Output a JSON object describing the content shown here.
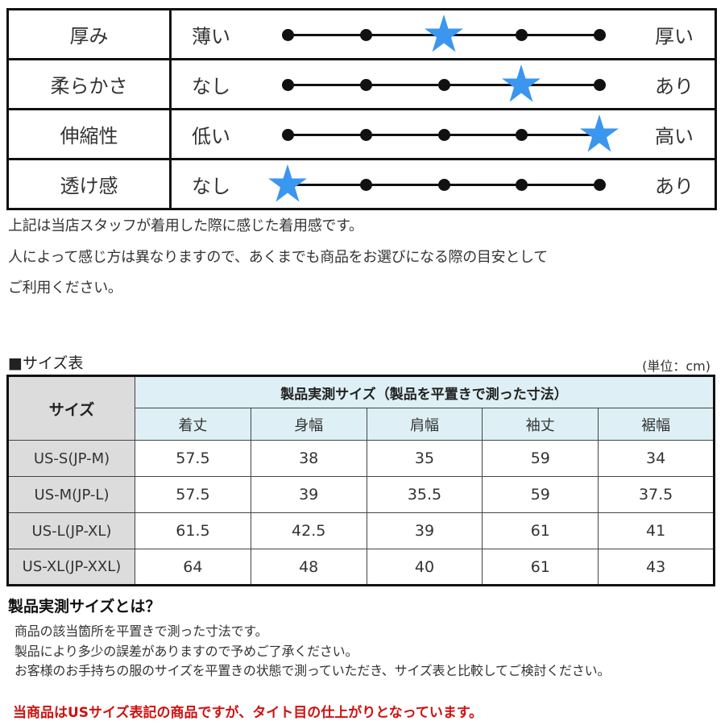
{
  "feel_chart": {
    "levels": 5,
    "star_color": "#3a96ef",
    "rows": [
      {
        "label": "厚み",
        "left": "薄い",
        "right": "厚い",
        "value": 3
      },
      {
        "label": "柔らかさ",
        "left": "なし",
        "right": "あり",
        "value": 4
      },
      {
        "label": "伸縮性",
        "left": "低い",
        "right": "高い",
        "value": 5
      },
      {
        "label": "透け感",
        "left": "なし",
        "right": "あり",
        "value": 1
      }
    ]
  },
  "notes": [
    "上記は当店スタッフが着用した際に感じた着用感です。",
    "人によって感じ方は異なりますので、あくまでも商品をお選びになる際の目安として",
    "ご利用ください。"
  ],
  "size_section": {
    "title": "■サイズ表",
    "unit": "(単位：cm)"
  },
  "size_table": {
    "size_header": "サイズ",
    "group_header": "製品実測サイズ（製品を平置きで測った寸法）",
    "columns": [
      "着丈",
      "身幅",
      "肩幅",
      "袖丈",
      "裾幅"
    ],
    "rows": [
      {
        "size": "US-S(JP-M)",
        "values": [
          "57.5",
          "38",
          "35",
          "59",
          "34"
        ]
      },
      {
        "size": "US-M(JP-L)",
        "values": [
          "57.5",
          "39",
          "35.5",
          "59",
          "37.5"
        ]
      },
      {
        "size": "US-L(JP-XL)",
        "values": [
          "61.5",
          "42.5",
          "39",
          "61",
          "41"
        ]
      },
      {
        "size": "US-XL(JP-XXL)",
        "values": [
          "64",
          "48",
          "40",
          "61",
          "43"
        ]
      }
    ]
  },
  "explanation": {
    "title": "製品実測サイズとは？",
    "lines": [
      "商品の該当箇所を平置きで測った寸法です。",
      "製品により多少の誤差がありますので予めご了承ください。",
      "お客様のお手持ちの服のサイズを平置きの状態で測っていただき、サイズ表と比較してご検討ください。"
    ],
    "warning": "当商品はUSサイズ表記の商品ですが、タイト目の仕上がりとなっています。",
    "warning_color": "#d01010"
  }
}
